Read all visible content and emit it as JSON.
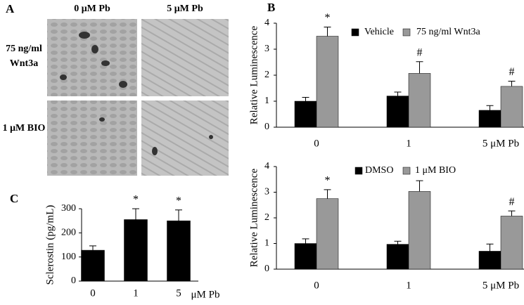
{
  "panel_a": {
    "label": "A",
    "columns": [
      "0 μM Pb",
      "5 μM Pb"
    ],
    "rows": [
      [
        "75 ng/ml",
        "Wnt3a"
      ],
      [
        "1 μM BIO"
      ]
    ]
  },
  "chart_data": [
    {
      "type": "bar",
      "panel": "B",
      "ylabel": "Relative Luminescence",
      "categories": [
        "0",
        "1",
        "5 μM Pb"
      ],
      "series": [
        {
          "name": "Vehicle",
          "color": "#000000",
          "values": [
            1.0,
            1.2,
            0.65
          ],
          "errors": [
            0.15,
            0.15,
            0.18
          ]
        },
        {
          "name": "75 ng/ml Wnt3a",
          "color": "#999999",
          "values": [
            3.5,
            2.07,
            1.57
          ],
          "errors": [
            0.35,
            0.45,
            0.2
          ]
        }
      ],
      "markers": [
        "*",
        "#",
        "#"
      ],
      "ylim": [
        0,
        4
      ],
      "yticks": [
        0,
        1,
        2,
        3,
        4
      ]
    },
    {
      "type": "bar",
      "ylabel": "Relative Luminescence",
      "categories": [
        "0",
        "1",
        "5 μM Pb"
      ],
      "series": [
        {
          "name": "DMSO",
          "color": "#000000",
          "values": [
            1.0,
            0.97,
            0.7
          ],
          "errors": [
            0.18,
            0.12,
            0.28
          ]
        },
        {
          "name": "1 μM BIO",
          "color": "#999999",
          "values": [
            2.75,
            3.03,
            2.07
          ],
          "errors": [
            0.35,
            0.42,
            0.2
          ]
        }
      ],
      "markers": [
        "*",
        null,
        "#"
      ],
      "ylim": [
        0,
        4
      ],
      "yticks": [
        0,
        1,
        2,
        3,
        4
      ]
    },
    {
      "type": "bar",
      "panel": "C",
      "ylabel": "Sclerostin (pg/mL)",
      "xlabel": "μM Pb",
      "categories": [
        "0",
        "1",
        "5"
      ],
      "series": [
        {
          "color": "#000000",
          "values": [
            128,
            255,
            250
          ],
          "errors": [
            18,
            45,
            45
          ]
        }
      ],
      "markers": [
        null,
        "*",
        "*"
      ],
      "ylim": [
        0,
        300
      ],
      "yticks": [
        0,
        100,
        200,
        300
      ]
    }
  ]
}
